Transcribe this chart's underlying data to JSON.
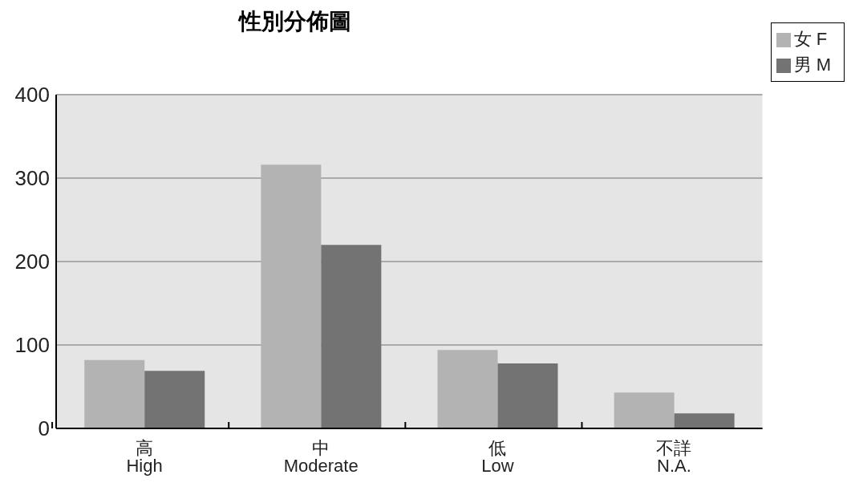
{
  "chart_data": {
    "type": "bar",
    "title": "性別分佈圖",
    "categories": [
      "高\nHigh",
      "中\nModerate",
      "低\nLow",
      "不詳\nN.A."
    ],
    "series": [
      {
        "name": "女 F",
        "color": "#b3b3b3",
        "values": [
          82,
          316,
          94,
          43
        ]
      },
      {
        "name": "男 M",
        "color": "#737373",
        "values": [
          69,
          220,
          78,
          18
        ]
      }
    ],
    "ylim": [
      0,
      400
    ],
    "yticks": [
      0,
      100,
      200,
      300,
      400
    ],
    "grid": "y",
    "legend": "top right"
  }
}
